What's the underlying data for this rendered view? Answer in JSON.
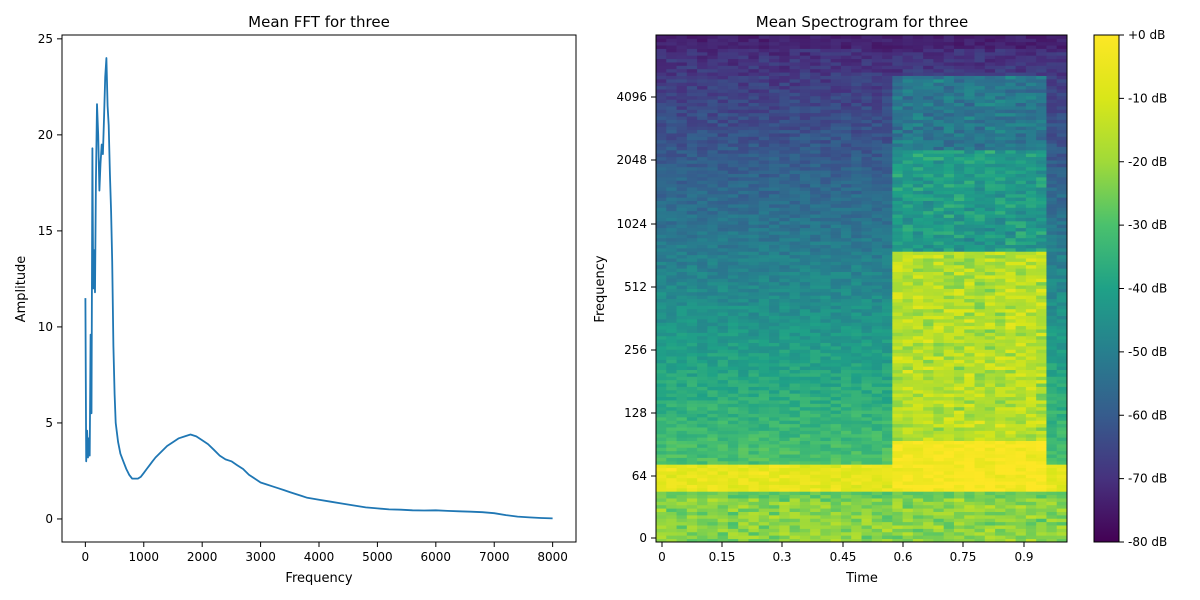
{
  "chart_data": [
    {
      "type": "line",
      "title": "Mean FFT for three",
      "xlabel": "Frequency",
      "ylabel": "Amplitude",
      "xlim": [
        -400,
        8400
      ],
      "ylim": [
        -1.2,
        25.2
      ],
      "xticks": [
        0,
        1000,
        2000,
        3000,
        4000,
        5000,
        6000,
        7000,
        8000
      ],
      "yticks": [
        0,
        5,
        10,
        15,
        20,
        25
      ],
      "color": "#1f77b4",
      "series": [
        {
          "x": [
            0,
            15,
            30,
            45,
            60,
            75,
            90,
            105,
            120,
            135,
            150,
            165,
            180,
            200,
            220,
            240,
            260,
            280,
            300,
            320,
            340,
            360,
            380,
            400,
            420,
            440,
            460,
            480,
            500,
            520,
            540,
            560,
            600,
            650,
            700,
            750,
            800,
            850,
            900,
            950,
            1000,
            1050,
            1100,
            1150,
            1200,
            1300,
            1400,
            1500,
            1600,
            1700,
            1800,
            1900,
            2000,
            2100,
            2200,
            2300,
            2400,
            2500,
            2600,
            2700,
            2800,
            2900,
            3000,
            3100,
            3200,
            3300,
            3400,
            3500,
            3600,
            3700,
            3800,
            3900,
            4000,
            4200,
            4400,
            4600,
            4800,
            5000,
            5200,
            5400,
            5600,
            5800,
            6000,
            6200,
            6400,
            6600,
            6800,
            7000,
            7200,
            7400,
            7600,
            7800,
            8000
          ],
          "values": [
            11.5,
            3.0,
            4.6,
            3.2,
            4.2,
            3.3,
            9.6,
            5.5,
            19.3,
            12.0,
            14.0,
            11.8,
            17.5,
            21.6,
            20.0,
            17.1,
            18.5,
            19.5,
            19.0,
            21.0,
            23.0,
            24.0,
            21.5,
            20.5,
            18.0,
            16.0,
            13.4,
            9.0,
            6.5,
            5.0,
            4.5,
            4.0,
            3.4,
            3.0,
            2.6,
            2.3,
            2.1,
            2.1,
            2.1,
            2.2,
            2.4,
            2.6,
            2.8,
            3.0,
            3.2,
            3.5,
            3.8,
            4.0,
            4.2,
            4.3,
            4.4,
            4.3,
            4.1,
            3.9,
            3.6,
            3.3,
            3.1,
            3.0,
            2.8,
            2.6,
            2.3,
            2.1,
            1.9,
            1.8,
            1.7,
            1.6,
            1.5,
            1.4,
            1.3,
            1.2,
            1.1,
            1.05,
            1.0,
            0.9,
            0.8,
            0.7,
            0.6,
            0.55,
            0.5,
            0.48,
            0.45,
            0.44,
            0.45,
            0.42,
            0.4,
            0.38,
            0.35,
            0.3,
            0.2,
            0.12,
            0.08,
            0.05,
            0.03
          ]
        }
      ]
    },
    {
      "type": "heatmap",
      "title": "Mean Spectrogram for three",
      "xlabel": "Time",
      "ylabel": "Frequency",
      "xticks": [
        "0",
        "0.15",
        "0.3",
        "0.45",
        "0.6",
        "0.75",
        "0.9"
      ],
      "yticks": [
        "0",
        "64",
        "128",
        "256",
        "512",
        "1024",
        "2048",
        "4096"
      ],
      "xlim": [
        -0.017,
        1.0
      ],
      "colormap": "viridis",
      "colorbar": {
        "ticks": [
          "+0 dB",
          "-10 dB",
          "-20 dB",
          "-30 dB",
          "-40 dB",
          "-50 dB",
          "-60 dB",
          "-70 dB",
          "-80 dB"
        ],
        "range_db": [
          -80,
          0
        ]
      }
    }
  ]
}
